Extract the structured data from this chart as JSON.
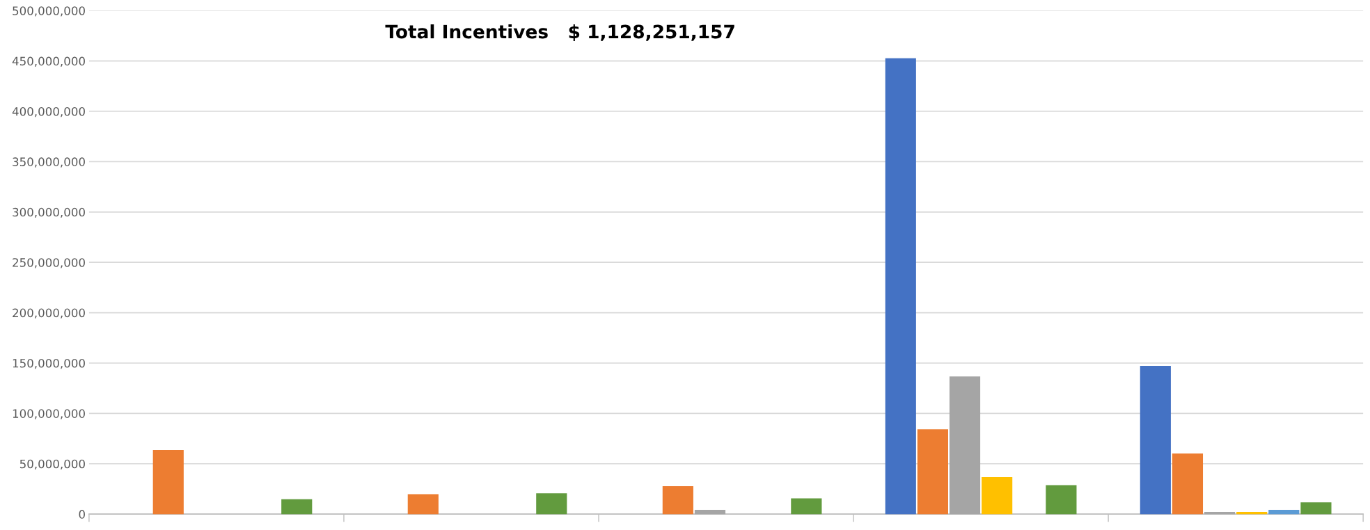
{
  "chart_data": {
    "type": "bar",
    "title": "Total Incentives   $ 1,128,251,157",
    "categories": [
      null,
      null,
      null,
      null,
      null
    ],
    "series": [
      {
        "color": "#4472c4",
        "values": [
          null,
          null,
          null,
          452000000,
          146500000
        ]
      },
      {
        "color": "#ed7d31",
        "values": [
          63000000,
          19000000,
          27000000,
          83500000,
          59500000
        ]
      },
      {
        "color": "#a5a5a5",
        "values": [
          null,
          null,
          3500000,
          136000000,
          1500000
        ]
      },
      {
        "color": "#ffc000",
        "values": [
          null,
          null,
          null,
          36000000,
          1500000
        ]
      },
      {
        "color": "#5b9bd5",
        "values": [
          null,
          null,
          null,
          null,
          3500000
        ]
      },
      {
        "color": "#629b3e",
        "values": [
          14000000,
          20000000,
          15000000,
          28000000,
          11000000
        ]
      }
    ],
    "ylim": [
      0,
      500000000
    ],
    "yticks": [
      {
        "value": 0,
        "label": "0"
      },
      {
        "value": 50000000,
        "label": "50,000,000"
      },
      {
        "value": 100000000,
        "label": "100,000,000"
      },
      {
        "value": 150000000,
        "label": "150,000,000"
      },
      {
        "value": 200000000,
        "label": "200,000,000"
      },
      {
        "value": 250000000,
        "label": "250,000,000"
      },
      {
        "value": 300000000,
        "label": "300,000,000"
      },
      {
        "value": 350000000,
        "label": "350,000,000"
      },
      {
        "value": 400000000,
        "label": "400,000,000"
      },
      {
        "value": 450000000,
        "label": "450,000,000"
      },
      {
        "value": 500000000,
        "label": "500,000,000"
      }
    ],
    "grid": "y"
  }
}
